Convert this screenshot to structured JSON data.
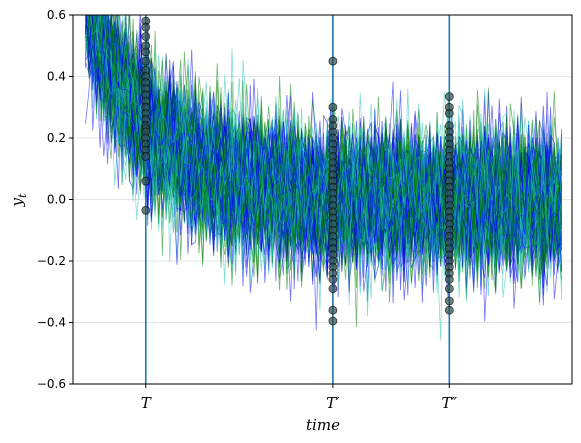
{
  "chart_data": {
    "type": "line",
    "title": "",
    "xlabel": "time",
    "ylabel": "y_t",
    "ylim": [
      -0.6,
      0.6
    ],
    "xlim": [
      -3.5,
      20.5
    ],
    "yticks": [
      -0.6,
      -0.4,
      -0.2,
      0.0,
      0.2,
      0.4,
      0.6
    ],
    "ytick_labels": [
      "−0.6",
      "−0.4",
      "−0.2",
      "0.0",
      "0.2",
      "0.4",
      "0.6"
    ],
    "grid": "horizontal",
    "legend": "none",
    "series_colors": [
      "#008000",
      "#0000ff",
      "#20c0b0"
    ],
    "vertical_markers": [
      {
        "label": "T",
        "x": 0
      },
      {
        "label": "T′",
        "x": 9
      },
      {
        "label": "T″",
        "x": 14.6
      }
    ],
    "marker_color": "#1f77b4",
    "path_model": {
      "start": 0.7,
      "decay": 0.32,
      "noise_sd": 0.11,
      "num_paths": 150,
      "t_end": 20
    },
    "cross_sections": [
      {
        "at": "T",
        "values": [
          0.58,
          0.56,
          0.53,
          0.5,
          0.48,
          0.45,
          0.42,
          0.4,
          0.38,
          0.36,
          0.34,
          0.32,
          0.3,
          0.28,
          0.26,
          0.24,
          0.23,
          0.22,
          0.2,
          0.18,
          0.16,
          0.14,
          0.06,
          -0.035
        ]
      },
      {
        "at": "T′",
        "values": [
          0.45,
          0.3,
          0.26,
          0.24,
          0.22,
          0.2,
          0.18,
          0.16,
          0.14,
          0.12,
          0.1,
          0.08,
          0.06,
          0.04,
          0.02,
          0.0,
          -0.02,
          -0.04,
          -0.06,
          -0.08,
          -0.1,
          -0.12,
          -0.14,
          -0.16,
          -0.18,
          -0.2,
          -0.22,
          -0.24,
          -0.26,
          -0.29,
          -0.36,
          -0.395
        ]
      },
      {
        "at": "T″",
        "values": [
          0.335,
          0.3,
          0.28,
          0.24,
          0.22,
          0.2,
          0.18,
          0.16,
          0.14,
          0.12,
          0.1,
          0.08,
          0.06,
          0.04,
          0.02,
          0.0,
          -0.02,
          -0.04,
          -0.06,
          -0.08,
          -0.1,
          -0.12,
          -0.14,
          -0.16,
          -0.18,
          -0.2,
          -0.22,
          -0.24,
          -0.26,
          -0.29,
          -0.33,
          -0.36
        ]
      }
    ]
  }
}
